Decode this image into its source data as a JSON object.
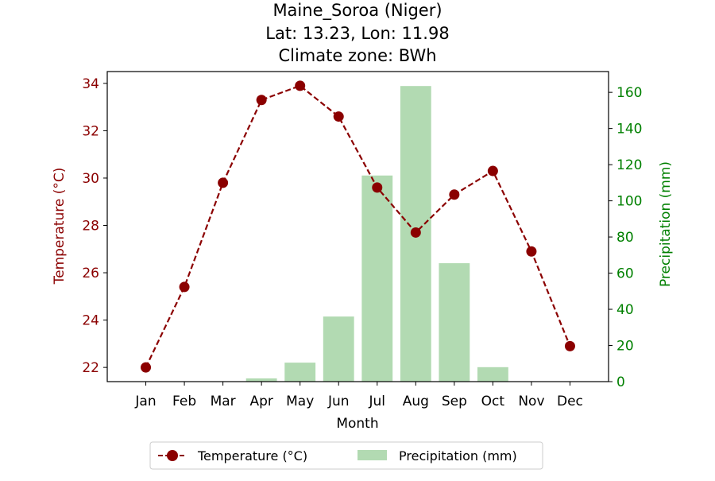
{
  "chart_data": {
    "type": "bar+line",
    "title_lines": [
      "Maine_Soroa (Niger)",
      "Lat: 13.23, Lon: 11.98",
      "Climate zone: BWh"
    ],
    "xlabel": "Month",
    "categories": [
      "Jan",
      "Feb",
      "Mar",
      "Apr",
      "May",
      "Jun",
      "Jul",
      "Aug",
      "Sep",
      "Oct",
      "Nov",
      "Dec"
    ],
    "left_axis": {
      "label": "Temperature (°C)",
      "ticks": [
        22,
        24,
        26,
        28,
        30,
        32,
        34
      ],
      "ylim": [
        21.4,
        34.5
      ],
      "color": "#8b0000"
    },
    "right_axis": {
      "label": "Precipitation (mm)",
      "ticks": [
        0,
        20,
        40,
        60,
        80,
        100,
        120,
        140,
        160
      ],
      "ylim": [
        0,
        171.5
      ],
      "color": "#008000"
    },
    "series": [
      {
        "name": "Temperature (°C)",
        "kind": "line",
        "axis": "left",
        "color": "#8b0000",
        "values": [
          22.0,
          25.4,
          29.8,
          33.3,
          33.9,
          32.6,
          29.6,
          27.7,
          29.3,
          30.3,
          26.9,
          22.9
        ]
      },
      {
        "name": "Precipitation (mm)",
        "kind": "bar",
        "axis": "right",
        "color": "#b2dab2",
        "values": [
          0,
          0,
          0,
          1.8,
          10.5,
          36,
          114,
          163.5,
          65.5,
          8,
          0,
          0
        ]
      }
    ],
    "legend_position": "bottom-center",
    "grid": false
  }
}
